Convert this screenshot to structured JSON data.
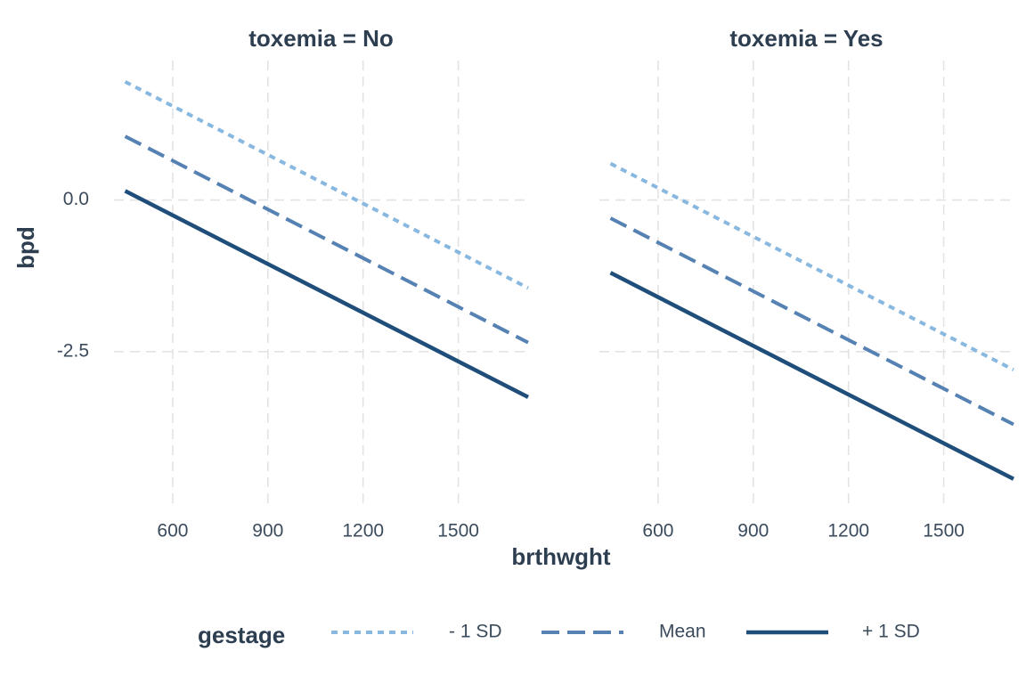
{
  "chart_data": {
    "type": "line",
    "y_label": "bpd",
    "x_label": "brthwght",
    "x_ticks": [
      600,
      900,
      1200,
      1500
    ],
    "y_ticks": [
      0.0,
      -2.5
    ],
    "y_tick_labels": [
      "0.0",
      "-2.5"
    ],
    "x_range": [
      415,
      1720
    ],
    "y_range": [
      -5.0,
      2.3
    ],
    "grid": true,
    "legend": {
      "title": "gestage",
      "position": "bottom",
      "entries": [
        "- 1 SD",
        "Mean",
        "+ 1 SD"
      ]
    },
    "facets": [
      {
        "title": "toxemia = No",
        "series": [
          {
            "name": "- 1 SD",
            "x": [
              450,
              1720
            ],
            "y": [
              1.95,
              -1.45
            ]
          },
          {
            "name": "Mean",
            "x": [
              450,
              1720
            ],
            "y": [
              1.05,
              -2.35
            ]
          },
          {
            "name": "+ 1 SD",
            "x": [
              450,
              1720
            ],
            "y": [
              0.15,
              -3.25
            ]
          }
        ]
      },
      {
        "title": "toxemia = Yes",
        "series": [
          {
            "name": "- 1 SD",
            "x": [
              450,
              1720
            ],
            "y": [
              0.6,
              -2.8
            ]
          },
          {
            "name": "Mean",
            "x": [
              450,
              1720
            ],
            "y": [
              -0.3,
              -3.7
            ]
          },
          {
            "name": "+ 1 SD",
            "x": [
              450,
              1720
            ],
            "y": [
              -1.2,
              -4.6
            ]
          }
        ]
      }
    ],
    "series_styles": [
      {
        "name": "- 1 SD",
        "color": "#88b8df",
        "dash": "dotted"
      },
      {
        "name": "Mean",
        "color": "#5582b3",
        "dash": "dashed"
      },
      {
        "name": "+ 1 SD",
        "color": "#1f4e7a",
        "dash": "solid"
      }
    ]
  }
}
